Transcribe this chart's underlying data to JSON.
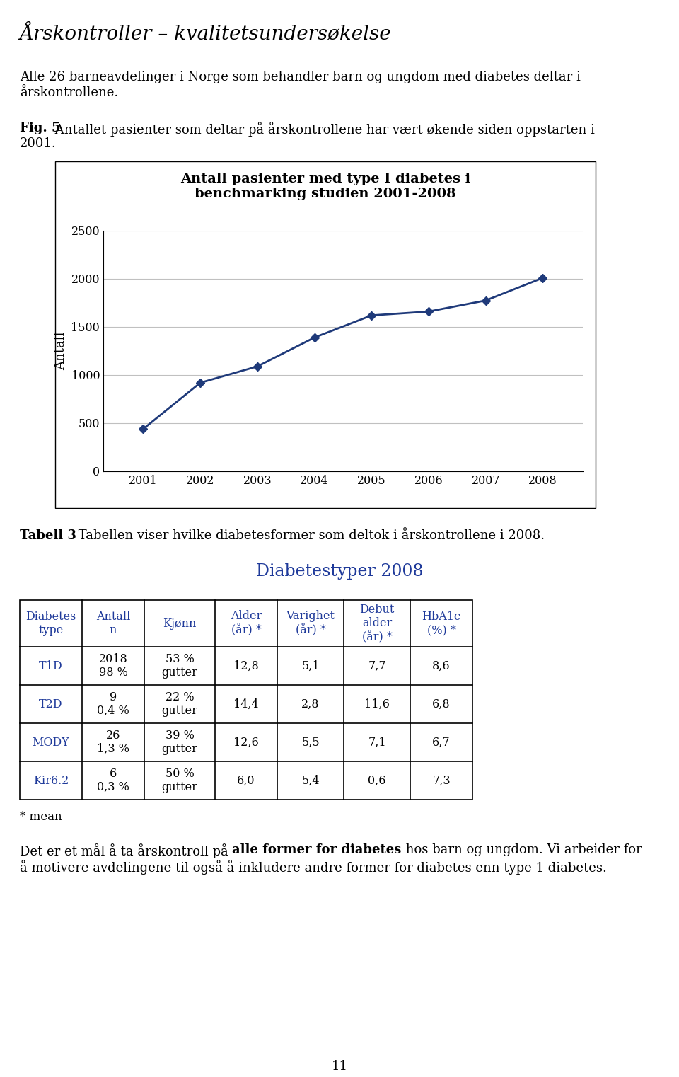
{
  "page_title": "Årskontroller – kvalitetsundersøkelse",
  "para1_line1": "Alle 26 barneavdelinger i Norge som behandler barn og ungdom med diabetes deltar i",
  "para1_line2": "årskontrollene.",
  "fig_bold": "Fig. 5",
  "fig_caption": " Antallet pasienter som deltar på årskontrollene har vært økende siden oppstarten i",
  "fig_caption2": "2001.",
  "chart_title1": "Antall pasienter med type I diabetes i",
  "chart_title2": "benchmarking studien 2001-2008",
  "years": [
    2001,
    2002,
    2003,
    2004,
    2005,
    2006,
    2007,
    2008
  ],
  "values": [
    440,
    920,
    1090,
    1390,
    1620,
    1660,
    1775,
    2010
  ],
  "ylabel": "Antall",
  "line_color": "#1F3A7A",
  "ylim": [
    0,
    2500
  ],
  "yticks": [
    0,
    500,
    1000,
    1500,
    2000,
    2500
  ],
  "tabell_bold": "Tabell 3",
  "tabell_caption": " Tabellen viser hvilke diabetesformer som deltok i årskontrollene i 2008.",
  "table_title": "Diabetestyper 2008",
  "col_headers": [
    "Diabetes\ntype",
    "Antall\nn",
    "Kjønn",
    "Alder\n(år) *",
    "Varighet\n(år) *",
    "Debut\nalder\n(år) *",
    "HbA1c\n(%) *"
  ],
  "table_rows": [
    [
      "T1D",
      "2018\n98 %",
      "53 %\ngutter",
      "12,8",
      "5,1",
      "7,7",
      "8,6"
    ],
    [
      "T2D",
      "9\n0,4 %",
      "22 %\ngutter",
      "14,4",
      "2,8",
      "11,6",
      "6,8"
    ],
    [
      "MODY",
      "26\n1,3 %",
      "39 %\ngutter",
      "12,6",
      "5,5",
      "7,1",
      "6,7"
    ],
    [
      "Kir6.2",
      "6\n0,3 %",
      "50 %\ngutter",
      "6,0",
      "5,4",
      "0,6",
      "7,3"
    ]
  ],
  "footnote": "* mean",
  "fp1": "Det er et mål å ta årskontroll på ",
  "fb": "alle former for diabetes",
  "fp2": " hos barn og ungdom. Vi arbeider for",
  "fl2": "å motivere avdelingene til også å inkludere andre former for diabetes enn type 1 diabetes.",
  "page_number": "11",
  "blue": "#1F3A9A"
}
